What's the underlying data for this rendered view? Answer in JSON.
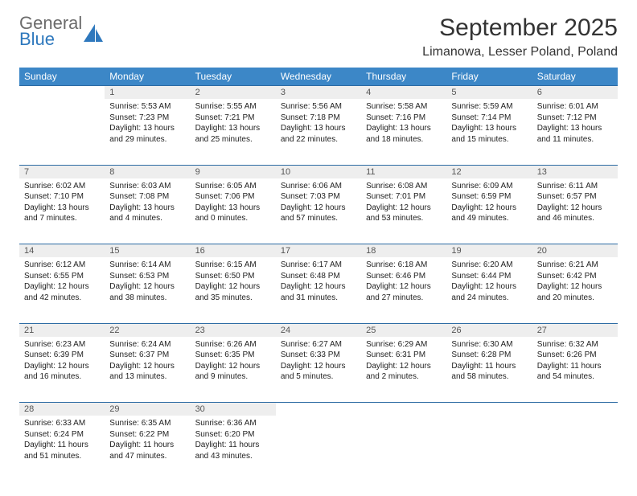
{
  "brand": {
    "line1": "General",
    "line2": "Blue",
    "text_color": "#6b6b6b",
    "accent_color": "#2e78bd"
  },
  "title": "September 2025",
  "location": "Limanowa, Lesser Poland, Poland",
  "header_bar_color": "#3c87c7",
  "daynum_bg": "#eeeeee",
  "row_divider_color": "#2b6aa3",
  "days_of_week": [
    "Sunday",
    "Monday",
    "Tuesday",
    "Wednesday",
    "Thursday",
    "Friday",
    "Saturday"
  ],
  "weeks": [
    [
      null,
      {
        "n": "1",
        "sunrise": "Sunrise: 5:53 AM",
        "sunset": "Sunset: 7:23 PM",
        "day1": "Daylight: 13 hours",
        "day2": "and 29 minutes."
      },
      {
        "n": "2",
        "sunrise": "Sunrise: 5:55 AM",
        "sunset": "Sunset: 7:21 PM",
        "day1": "Daylight: 13 hours",
        "day2": "and 25 minutes."
      },
      {
        "n": "3",
        "sunrise": "Sunrise: 5:56 AM",
        "sunset": "Sunset: 7:18 PM",
        "day1": "Daylight: 13 hours",
        "day2": "and 22 minutes."
      },
      {
        "n": "4",
        "sunrise": "Sunrise: 5:58 AM",
        "sunset": "Sunset: 7:16 PM",
        "day1": "Daylight: 13 hours",
        "day2": "and 18 minutes."
      },
      {
        "n": "5",
        "sunrise": "Sunrise: 5:59 AM",
        "sunset": "Sunset: 7:14 PM",
        "day1": "Daylight: 13 hours",
        "day2": "and 15 minutes."
      },
      {
        "n": "6",
        "sunrise": "Sunrise: 6:01 AM",
        "sunset": "Sunset: 7:12 PM",
        "day1": "Daylight: 13 hours",
        "day2": "and 11 minutes."
      }
    ],
    [
      {
        "n": "7",
        "sunrise": "Sunrise: 6:02 AM",
        "sunset": "Sunset: 7:10 PM",
        "day1": "Daylight: 13 hours",
        "day2": "and 7 minutes."
      },
      {
        "n": "8",
        "sunrise": "Sunrise: 6:03 AM",
        "sunset": "Sunset: 7:08 PM",
        "day1": "Daylight: 13 hours",
        "day2": "and 4 minutes."
      },
      {
        "n": "9",
        "sunrise": "Sunrise: 6:05 AM",
        "sunset": "Sunset: 7:06 PM",
        "day1": "Daylight: 13 hours",
        "day2": "and 0 minutes."
      },
      {
        "n": "10",
        "sunrise": "Sunrise: 6:06 AM",
        "sunset": "Sunset: 7:03 PM",
        "day1": "Daylight: 12 hours",
        "day2": "and 57 minutes."
      },
      {
        "n": "11",
        "sunrise": "Sunrise: 6:08 AM",
        "sunset": "Sunset: 7:01 PM",
        "day1": "Daylight: 12 hours",
        "day2": "and 53 minutes."
      },
      {
        "n": "12",
        "sunrise": "Sunrise: 6:09 AM",
        "sunset": "Sunset: 6:59 PM",
        "day1": "Daylight: 12 hours",
        "day2": "and 49 minutes."
      },
      {
        "n": "13",
        "sunrise": "Sunrise: 6:11 AM",
        "sunset": "Sunset: 6:57 PM",
        "day1": "Daylight: 12 hours",
        "day2": "and 46 minutes."
      }
    ],
    [
      {
        "n": "14",
        "sunrise": "Sunrise: 6:12 AM",
        "sunset": "Sunset: 6:55 PM",
        "day1": "Daylight: 12 hours",
        "day2": "and 42 minutes."
      },
      {
        "n": "15",
        "sunrise": "Sunrise: 6:14 AM",
        "sunset": "Sunset: 6:53 PM",
        "day1": "Daylight: 12 hours",
        "day2": "and 38 minutes."
      },
      {
        "n": "16",
        "sunrise": "Sunrise: 6:15 AM",
        "sunset": "Sunset: 6:50 PM",
        "day1": "Daylight: 12 hours",
        "day2": "and 35 minutes."
      },
      {
        "n": "17",
        "sunrise": "Sunrise: 6:17 AM",
        "sunset": "Sunset: 6:48 PM",
        "day1": "Daylight: 12 hours",
        "day2": "and 31 minutes."
      },
      {
        "n": "18",
        "sunrise": "Sunrise: 6:18 AM",
        "sunset": "Sunset: 6:46 PM",
        "day1": "Daylight: 12 hours",
        "day2": "and 27 minutes."
      },
      {
        "n": "19",
        "sunrise": "Sunrise: 6:20 AM",
        "sunset": "Sunset: 6:44 PM",
        "day1": "Daylight: 12 hours",
        "day2": "and 24 minutes."
      },
      {
        "n": "20",
        "sunrise": "Sunrise: 6:21 AM",
        "sunset": "Sunset: 6:42 PM",
        "day1": "Daylight: 12 hours",
        "day2": "and 20 minutes."
      }
    ],
    [
      {
        "n": "21",
        "sunrise": "Sunrise: 6:23 AM",
        "sunset": "Sunset: 6:39 PM",
        "day1": "Daylight: 12 hours",
        "day2": "and 16 minutes."
      },
      {
        "n": "22",
        "sunrise": "Sunrise: 6:24 AM",
        "sunset": "Sunset: 6:37 PM",
        "day1": "Daylight: 12 hours",
        "day2": "and 13 minutes."
      },
      {
        "n": "23",
        "sunrise": "Sunrise: 6:26 AM",
        "sunset": "Sunset: 6:35 PM",
        "day1": "Daylight: 12 hours",
        "day2": "and 9 minutes."
      },
      {
        "n": "24",
        "sunrise": "Sunrise: 6:27 AM",
        "sunset": "Sunset: 6:33 PM",
        "day1": "Daylight: 12 hours",
        "day2": "and 5 minutes."
      },
      {
        "n": "25",
        "sunrise": "Sunrise: 6:29 AM",
        "sunset": "Sunset: 6:31 PM",
        "day1": "Daylight: 12 hours",
        "day2": "and 2 minutes."
      },
      {
        "n": "26",
        "sunrise": "Sunrise: 6:30 AM",
        "sunset": "Sunset: 6:28 PM",
        "day1": "Daylight: 11 hours",
        "day2": "and 58 minutes."
      },
      {
        "n": "27",
        "sunrise": "Sunrise: 6:32 AM",
        "sunset": "Sunset: 6:26 PM",
        "day1": "Daylight: 11 hours",
        "day2": "and 54 minutes."
      }
    ],
    [
      {
        "n": "28",
        "sunrise": "Sunrise: 6:33 AM",
        "sunset": "Sunset: 6:24 PM",
        "day1": "Daylight: 11 hours",
        "day2": "and 51 minutes."
      },
      {
        "n": "29",
        "sunrise": "Sunrise: 6:35 AM",
        "sunset": "Sunset: 6:22 PM",
        "day1": "Daylight: 11 hours",
        "day2": "and 47 minutes."
      },
      {
        "n": "30",
        "sunrise": "Sunrise: 6:36 AM",
        "sunset": "Sunset: 6:20 PM",
        "day1": "Daylight: 11 hours",
        "day2": "and 43 minutes."
      },
      null,
      null,
      null,
      null
    ]
  ]
}
